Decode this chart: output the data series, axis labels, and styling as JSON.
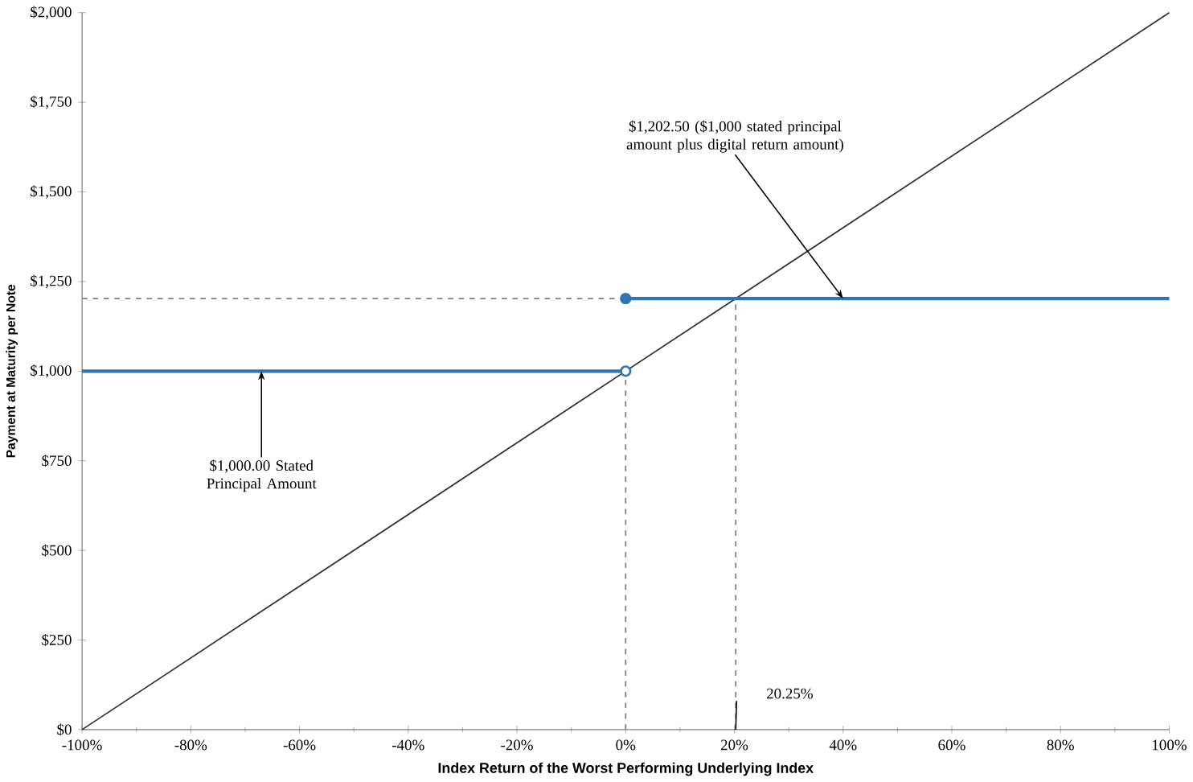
{
  "chart_data": {
    "type": "line",
    "xlabel": "Index Return of the Worst Performing Underlying Index",
    "ylabel": "Payment at Maturity per Note",
    "xlim": [
      -100,
      100
    ],
    "ylim": [
      0,
      2000
    ],
    "xticks": [
      {
        "value": -100,
        "label": "-100%"
      },
      {
        "value": -80,
        "label": "-80%"
      },
      {
        "value": -60,
        "label": "-60%"
      },
      {
        "value": -40,
        "label": "-40%"
      },
      {
        "value": -20,
        "label": "-20%"
      },
      {
        "value": 0,
        "label": "0%"
      },
      {
        "value": 20,
        "label": "20%"
      },
      {
        "value": 40,
        "label": "40%"
      },
      {
        "value": 60,
        "label": "60%"
      },
      {
        "value": 80,
        "label": "80%"
      },
      {
        "value": 100,
        "label": "100%"
      }
    ],
    "yticks": [
      {
        "value": 0,
        "label": "$0"
      },
      {
        "value": 250,
        "label": "$250"
      },
      {
        "value": 500,
        "label": "$500"
      },
      {
        "value": 750,
        "label": "$750"
      },
      {
        "value": 1000,
        "label": "$1,000"
      },
      {
        "value": 1250,
        "label": "$1,250"
      },
      {
        "value": 1500,
        "label": "$1,500"
      },
      {
        "value": 1750,
        "label": "$1,750"
      },
      {
        "value": 2000,
        "label": "$2,000"
      }
    ],
    "grid": false,
    "series": [
      {
        "x": [
          -100,
          0
        ],
        "values": [
          1202.5,
          1202.5
        ],
        "color": "#808080",
        "line_style": "dashed"
      },
      {
        "x": [
          0,
          0
        ],
        "values": [
          0,
          1000
        ],
        "color": "#808080",
        "line_style": "dashed"
      },
      {
        "x": [
          20.25,
          20.25
        ],
        "values": [
          0,
          1202.5
        ],
        "color": "#808080",
        "line_style": "dashed"
      },
      {
        "x": [
          -100,
          100
        ],
        "values": [
          0,
          2000
        ],
        "color": "#333333",
        "line_style": "solid"
      },
      {
        "x": [
          -100,
          0
        ],
        "values": [
          1000,
          1000
        ],
        "color": "#2e75b6",
        "line_style": "solid"
      },
      {
        "x": [
          0,
          100
        ],
        "values": [
          1202.5,
          1202.5
        ],
        "color": "#2e75b6",
        "line_style": "solid"
      },
      {
        "type": "scatter",
        "x": [
          0
        ],
        "values": [
          1000
        ],
        "color": "#ffffff",
        "marker": "circle"
      },
      {
        "type": "scatter",
        "x": [
          0
        ],
        "values": [
          1202.5
        ],
        "color": "#2e75b6",
        "marker": "circle"
      }
    ],
    "annotations": [
      {
        "text": "$1,000.00 Stated Principal Amount",
        "x": -67,
        "y": 1000
      },
      {
        "text": "$1,202.50 ($1,000 stated principal amount plus digital return amount)",
        "x": 40,
        "y": 1202.5
      },
      {
        "text": "20.25%",
        "x": 20.25,
        "y": 0
      }
    ]
  }
}
